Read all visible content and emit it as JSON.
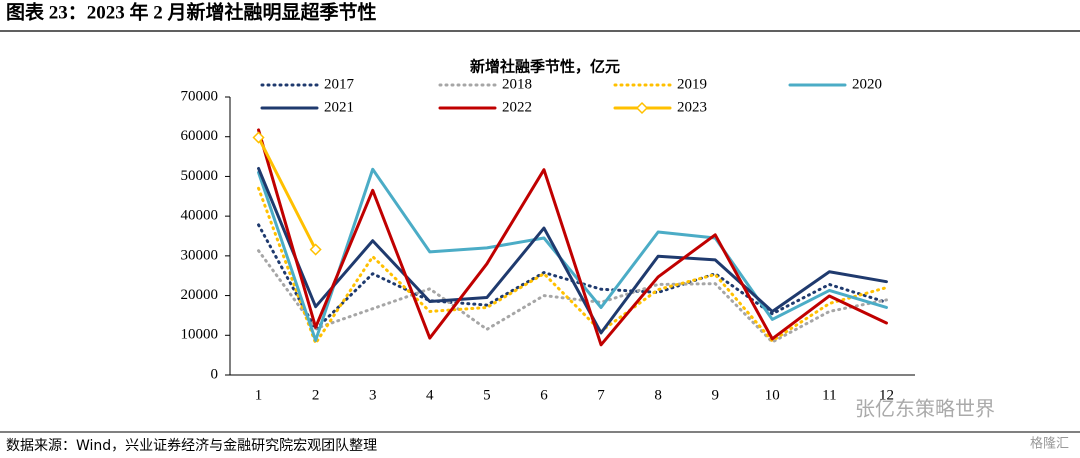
{
  "header": {
    "title": "图表 23：2023 年 2 月新增社融明显超季节性"
  },
  "chart_data": {
    "type": "line",
    "title": "新增社融季节性，亿元",
    "categories": [
      "1",
      "2",
      "3",
      "4",
      "5",
      "6",
      "7",
      "8",
      "9",
      "10",
      "11",
      "12"
    ],
    "ylim": [
      0,
      70000
    ],
    "yticks": [
      0,
      10000,
      20000,
      30000,
      40000,
      50000,
      60000,
      70000
    ],
    "series": [
      {
        "name": "2017",
        "color": "#1f3a6e",
        "line_style": "dotted",
        "values": [
          37800,
          11500,
          25500,
          18700,
          17600,
          25800,
          21600,
          20800,
          25500,
          15400,
          22800,
          18300
        ]
      },
      {
        "name": "2018",
        "color": "#a6a6a6",
        "line_style": "dotted",
        "values": [
          31300,
          11700,
          16700,
          21700,
          11500,
          20000,
          18300,
          22800,
          23000,
          8300,
          16000,
          18900
        ]
      },
      {
        "name": "2019",
        "color": "#ffc000",
        "line_style": "dotted",
        "values": [
          47000,
          8000,
          29800,
          16000,
          17000,
          25500,
          11000,
          21500,
          25300,
          8600,
          18000,
          22000
        ]
      },
      {
        "name": "2020",
        "color": "#4bacc6",
        "line_style": "solid",
        "values": [
          51000,
          8700,
          51800,
          31000,
          32000,
          34500,
          17000,
          36000,
          34500,
          14000,
          21300,
          17000
        ]
      },
      {
        "name": "2021",
        "color": "#1f3a6e",
        "line_style": "solid",
        "values": [
          52000,
          17200,
          33800,
          18500,
          19500,
          37000,
          10600,
          29900,
          29000,
          16000,
          26000,
          23500
        ]
      },
      {
        "name": "2022",
        "color": "#c00000",
        "line_style": "solid",
        "values": [
          61700,
          12000,
          46500,
          9300,
          28000,
          51700,
          7600,
          24700,
          35300,
          9100,
          19900,
          13100
        ]
      },
      {
        "name": "2023",
        "color": "#ffc000",
        "line_style": "solid",
        "marker": "diamond",
        "values": [
          59800,
          31600,
          null,
          null,
          null,
          null,
          null,
          null,
          null,
          null,
          null,
          null
        ]
      }
    ]
  },
  "footer": {
    "source": "数据来源：Wind，兴业证券经济与金融研究院宏观团队整理",
    "watermark": "张亿东策略世界",
    "logo": "格隆汇"
  }
}
